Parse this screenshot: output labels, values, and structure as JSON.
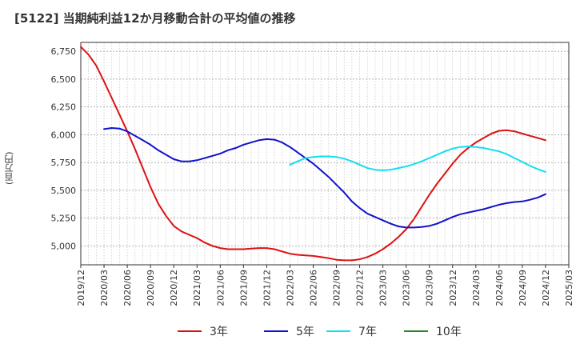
{
  "title": "[5122]  当期純利益12か月移動合計の平均値の推移",
  "chart_data": {
    "type": "line",
    "title": "[5122]  当期純利益12か月移動合計の平均値の推移",
    "ylabel": "(百万円)",
    "xlabel": "",
    "ylim": [
      4830,
      6830
    ],
    "yticks": [
      5000,
      5250,
      5500,
      5750,
      6000,
      6250,
      6500,
      6750
    ],
    "ytick_labels": [
      "5,000",
      "5,250",
      "5,500",
      "5,750",
      "6,000",
      "6,250",
      "6,500",
      "6,750"
    ],
    "xticks": [
      "2019/12",
      "2020/03",
      "2020/06",
      "2020/09",
      "2020/12",
      "2021/03",
      "2021/06",
      "2021/09",
      "2021/12",
      "2022/03",
      "2022/06",
      "2022/09",
      "2022/12",
      "2023/03",
      "2023/06",
      "2023/09",
      "2023/12",
      "2024/03",
      "2024/06",
      "2024/09",
      "2024/12",
      "2025/03"
    ],
    "grid": true,
    "legend_position": "bottom",
    "series": [
      {
        "name": "3年",
        "color": "#dd1111",
        "points": [
          [
            "2019/12",
            6790
          ],
          [
            "2020/01",
            6720
          ],
          [
            "2020/02",
            6620
          ],
          [
            "2020/03",
            6480
          ],
          [
            "2020/04",
            6330
          ],
          [
            "2020/05",
            6180
          ],
          [
            "2020/06",
            6030
          ],
          [
            "2020/07",
            5870
          ],
          [
            "2020/08",
            5700
          ],
          [
            "2020/09",
            5530
          ],
          [
            "2020/10",
            5380
          ],
          [
            "2020/11",
            5270
          ],
          [
            "2020/12",
            5180
          ],
          [
            "2021/01",
            5130
          ],
          [
            "2021/02",
            5100
          ],
          [
            "2021/03",
            5070
          ],
          [
            "2021/04",
            5030
          ],
          [
            "2021/05",
            5000
          ],
          [
            "2021/06",
            4980
          ],
          [
            "2021/07",
            4970
          ],
          [
            "2021/08",
            4970
          ],
          [
            "2021/09",
            4970
          ],
          [
            "2021/10",
            4975
          ],
          [
            "2021/11",
            4980
          ],
          [
            "2021/12",
            4980
          ],
          [
            "2022/01",
            4970
          ],
          [
            "2022/02",
            4950
          ],
          [
            "2022/03",
            4930
          ],
          [
            "2022/04",
            4920
          ],
          [
            "2022/05",
            4915
          ],
          [
            "2022/06",
            4910
          ],
          [
            "2022/07",
            4900
          ],
          [
            "2022/08",
            4890
          ],
          [
            "2022/09",
            4875
          ],
          [
            "2022/10",
            4870
          ],
          [
            "2022/11",
            4870
          ],
          [
            "2022/12",
            4880
          ],
          [
            "2023/01",
            4900
          ],
          [
            "2023/02",
            4930
          ],
          [
            "2023/03",
            4970
          ],
          [
            "2023/04",
            5020
          ],
          [
            "2023/05",
            5080
          ],
          [
            "2023/06",
            5150
          ],
          [
            "2023/07",
            5240
          ],
          [
            "2023/08",
            5350
          ],
          [
            "2023/09",
            5460
          ],
          [
            "2023/10",
            5560
          ],
          [
            "2023/11",
            5650
          ],
          [
            "2023/12",
            5740
          ],
          [
            "2024/01",
            5820
          ],
          [
            "2024/02",
            5880
          ],
          [
            "2024/03",
            5930
          ],
          [
            "2024/04",
            5970
          ],
          [
            "2024/05",
            6010
          ],
          [
            "2024/06",
            6035
          ],
          [
            "2024/07",
            6040
          ],
          [
            "2024/08",
            6030
          ],
          [
            "2024/09",
            6010
          ],
          [
            "2024/10",
            5990
          ],
          [
            "2024/11",
            5970
          ],
          [
            "2024/12",
            5950
          ]
        ]
      },
      {
        "name": "5年",
        "color": "#1111cc",
        "points": [
          [
            "2020/03",
            6050
          ],
          [
            "2020/04",
            6060
          ],
          [
            "2020/05",
            6055
          ],
          [
            "2020/06",
            6030
          ],
          [
            "2020/07",
            5990
          ],
          [
            "2020/08",
            5950
          ],
          [
            "2020/09",
            5910
          ],
          [
            "2020/10",
            5860
          ],
          [
            "2020/11",
            5820
          ],
          [
            "2020/12",
            5780
          ],
          [
            "2021/01",
            5760
          ],
          [
            "2021/02",
            5760
          ],
          [
            "2021/03",
            5770
          ],
          [
            "2021/04",
            5790
          ],
          [
            "2021/05",
            5810
          ],
          [
            "2021/06",
            5830
          ],
          [
            "2021/07",
            5860
          ],
          [
            "2021/08",
            5880
          ],
          [
            "2021/09",
            5910
          ],
          [
            "2021/10",
            5930
          ],
          [
            "2021/11",
            5950
          ],
          [
            "2021/12",
            5960
          ],
          [
            "2022/01",
            5955
          ],
          [
            "2022/02",
            5930
          ],
          [
            "2022/03",
            5890
          ],
          [
            "2022/04",
            5840
          ],
          [
            "2022/05",
            5790
          ],
          [
            "2022/06",
            5740
          ],
          [
            "2022/07",
            5680
          ],
          [
            "2022/08",
            5620
          ],
          [
            "2022/09",
            5550
          ],
          [
            "2022/10",
            5480
          ],
          [
            "2022/11",
            5400
          ],
          [
            "2022/12",
            5340
          ],
          [
            "2023/01",
            5290
          ],
          [
            "2023/02",
            5260
          ],
          [
            "2023/03",
            5230
          ],
          [
            "2023/04",
            5200
          ],
          [
            "2023/05",
            5175
          ],
          [
            "2023/06",
            5165
          ],
          [
            "2023/07",
            5165
          ],
          [
            "2023/08",
            5170
          ],
          [
            "2023/09",
            5180
          ],
          [
            "2023/10",
            5200
          ],
          [
            "2023/11",
            5230
          ],
          [
            "2023/12",
            5260
          ],
          [
            "2024/01",
            5285
          ],
          [
            "2024/02",
            5300
          ],
          [
            "2024/03",
            5315
          ],
          [
            "2024/04",
            5330
          ],
          [
            "2024/05",
            5350
          ],
          [
            "2024/06",
            5370
          ],
          [
            "2024/07",
            5385
          ],
          [
            "2024/08",
            5395
          ],
          [
            "2024/09",
            5400
          ],
          [
            "2024/10",
            5415
          ],
          [
            "2024/11",
            5435
          ],
          [
            "2024/12",
            5465
          ]
        ]
      },
      {
        "name": "7年",
        "color": "#11e0ee",
        "points": [
          [
            "2022/03",
            5730
          ],
          [
            "2022/04",
            5760
          ],
          [
            "2022/05",
            5790
          ],
          [
            "2022/06",
            5800
          ],
          [
            "2022/07",
            5805
          ],
          [
            "2022/08",
            5805
          ],
          [
            "2022/09",
            5800
          ],
          [
            "2022/10",
            5785
          ],
          [
            "2022/11",
            5760
          ],
          [
            "2022/12",
            5730
          ],
          [
            "2023/01",
            5700
          ],
          [
            "2023/02",
            5685
          ],
          [
            "2023/03",
            5680
          ],
          [
            "2023/04",
            5685
          ],
          [
            "2023/05",
            5700
          ],
          [
            "2023/06",
            5715
          ],
          [
            "2023/07",
            5735
          ],
          [
            "2023/08",
            5760
          ],
          [
            "2023/09",
            5790
          ],
          [
            "2023/10",
            5820
          ],
          [
            "2023/11",
            5850
          ],
          [
            "2023/12",
            5875
          ],
          [
            "2024/01",
            5890
          ],
          [
            "2024/02",
            5895
          ],
          [
            "2024/03",
            5890
          ],
          [
            "2024/04",
            5880
          ],
          [
            "2024/05",
            5865
          ],
          [
            "2024/06",
            5850
          ],
          [
            "2024/07",
            5825
          ],
          [
            "2024/08",
            5790
          ],
          [
            "2024/09",
            5755
          ],
          [
            "2024/10",
            5720
          ],
          [
            "2024/11",
            5690
          ],
          [
            "2024/12",
            5665
          ]
        ]
      },
      {
        "name": "10年",
        "color": "#228822",
        "points": []
      }
    ]
  }
}
